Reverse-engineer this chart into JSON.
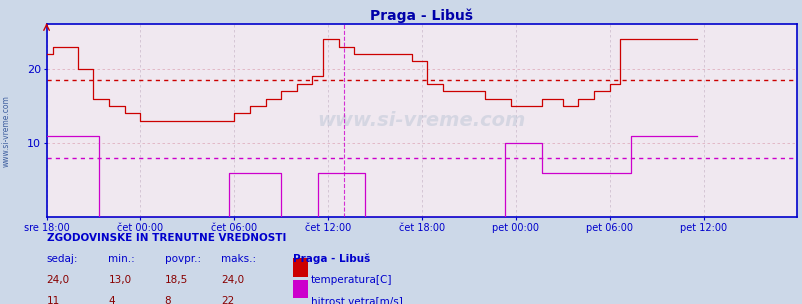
{
  "title": "Praga - Libuš",
  "bg_color": "#ccd8e8",
  "plot_bg_color": "#f0e8f0",
  "title_color": "#0000aa",
  "axis_color": "#0000cc",
  "grid_color_h": "#e0b0c0",
  "grid_color_v": "#d0c0d0",
  "temp_color": "#cc0000",
  "wind_color": "#cc00cc",
  "temp_avg_line": 18.5,
  "wind_avg_line": 8.0,
  "ylim": [
    0,
    26
  ],
  "yticks": [
    10,
    20
  ],
  "x_tick_labels": [
    "sre 18:00",
    "čet 00:00",
    "čet 06:00",
    "čet 12:00",
    "čet 18:00",
    "pet 00:00",
    "pet 06:00",
    "pet 12:00"
  ],
  "x_tick_positions": [
    0,
    72,
    144,
    216,
    288,
    360,
    432,
    504
  ],
  "total_points": 576,
  "temp_data": [
    22,
    22,
    22,
    22,
    22,
    23,
    23,
    23,
    23,
    23,
    23,
    23,
    23,
    23,
    23,
    23,
    23,
    23,
    23,
    23,
    23,
    23,
    23,
    23,
    20,
    20,
    20,
    20,
    20,
    20,
    20,
    20,
    20,
    20,
    20,
    20,
    16,
    16,
    16,
    16,
    16,
    16,
    16,
    16,
    16,
    16,
    16,
    16,
    15,
    15,
    15,
    15,
    15,
    15,
    15,
    15,
    15,
    15,
    15,
    15,
    14,
    14,
    14,
    14,
    14,
    14,
    14,
    14,
    14,
    14,
    14,
    14,
    13,
    13,
    13,
    13,
    13,
    13,
    13,
    13,
    13,
    13,
    13,
    13,
    13,
    13,
    13,
    13,
    13,
    13,
    13,
    13,
    13,
    13,
    13,
    13,
    13,
    13,
    13,
    13,
    13,
    13,
    13,
    13,
    13,
    13,
    13,
    13,
    13,
    13,
    13,
    13,
    13,
    13,
    13,
    13,
    13,
    13,
    13,
    13,
    13,
    13,
    13,
    13,
    13,
    13,
    13,
    13,
    13,
    13,
    13,
    13,
    13,
    13,
    13,
    13,
    13,
    13,
    13,
    13,
    13,
    13,
    13,
    13,
    14,
    14,
    14,
    14,
    14,
    14,
    14,
    14,
    14,
    14,
    14,
    14,
    15,
    15,
    15,
    15,
    15,
    15,
    15,
    15,
    15,
    15,
    15,
    15,
    16,
    16,
    16,
    16,
    16,
    16,
    16,
    16,
    16,
    16,
    16,
    16,
    17,
    17,
    17,
    17,
    17,
    17,
    17,
    17,
    17,
    17,
    17,
    17,
    18,
    18,
    18,
    18,
    18,
    18,
    18,
    18,
    18,
    18,
    18,
    18,
    19,
    19,
    19,
    19,
    19,
    19,
    19,
    19,
    24,
    24,
    24,
    24,
    24,
    24,
    24,
    24,
    24,
    24,
    24,
    24,
    23,
    23,
    23,
    23,
    23,
    23,
    23,
    23,
    23,
    23,
    23,
    23,
    22,
    22,
    22,
    22,
    22,
    22,
    22,
    22,
    22,
    22,
    22,
    22,
    22,
    22,
    22,
    22,
    22,
    22,
    22,
    22,
    22,
    22,
    22,
    22,
    22,
    22,
    22,
    22,
    22,
    22,
    22,
    22,
    22,
    22,
    22,
    22,
    22,
    22,
    22,
    22,
    22,
    22,
    22,
    22,
    21,
    21,
    21,
    21,
    21,
    21,
    21,
    21,
    21,
    21,
    21,
    21,
    18,
    18,
    18,
    18,
    18,
    18,
    18,
    18,
    18,
    18,
    18,
    18,
    17,
    17,
    17,
    17,
    17,
    17,
    17,
    17,
    17,
    17,
    17,
    17,
    17,
    17,
    17,
    17,
    17,
    17,
    17,
    17,
    17,
    17,
    17,
    17,
    17,
    17,
    17,
    17,
    17,
    17,
    17,
    17,
    16,
    16,
    16,
    16,
    16,
    16,
    16,
    16,
    16,
    16,
    16,
    16,
    16,
    16,
    16,
    16,
    16,
    16,
    16,
    16,
    15,
    15,
    15,
    15,
    15,
    15,
    15,
    15,
    15,
    15,
    15,
    15,
    15,
    15,
    15,
    15,
    15,
    15,
    15,
    15,
    15,
    15,
    15,
    15,
    16,
    16,
    16,
    16,
    16,
    16,
    16,
    16,
    16,
    16,
    16,
    16,
    16,
    16,
    16,
    16,
    15,
    15,
    15,
    15,
    15,
    15,
    15,
    15,
    15,
    15,
    15,
    15,
    16,
    16,
    16,
    16,
    16,
    16,
    16,
    16,
    16,
    16,
    16,
    16,
    17,
    17,
    17,
    17,
    17,
    17,
    17,
    17,
    17,
    17,
    17,
    17,
    18,
    18,
    18,
    18,
    18,
    18,
    18,
    18,
    24,
    24,
    24,
    24,
    24,
    24,
    24,
    24,
    24,
    24,
    24,
    24,
    24,
    24,
    24,
    24,
    24,
    24,
    24,
    24,
    24,
    24,
    24,
    24,
    24,
    24,
    24,
    24,
    24,
    24,
    24,
    24,
    24,
    24,
    24,
    24,
    24,
    24,
    24,
    24,
    24,
    24,
    24,
    24,
    24,
    24,
    24,
    24,
    24,
    24,
    24,
    24,
    24,
    24,
    24,
    24,
    24,
    24,
    24,
    24
  ],
  "wind_data": [
    11,
    11,
    11,
    11,
    11,
    11,
    11,
    11,
    11,
    11,
    11,
    11,
    11,
    11,
    11,
    11,
    11,
    11,
    11,
    11,
    11,
    11,
    11,
    11,
    11,
    11,
    11,
    11,
    11,
    11,
    11,
    11,
    11,
    11,
    11,
    11,
    11,
    11,
    11,
    11,
    0,
    0,
    0,
    0,
    0,
    0,
    0,
    0,
    0,
    0,
    0,
    0,
    0,
    0,
    0,
    0,
    0,
    0,
    0,
    0,
    0,
    0,
    0,
    0,
    0,
    0,
    0,
    0,
    0,
    0,
    0,
    0,
    0,
    0,
    0,
    0,
    0,
    0,
    0,
    0,
    0,
    0,
    0,
    0,
    0,
    0,
    0,
    0,
    0,
    0,
    0,
    0,
    0,
    0,
    0,
    0,
    0,
    0,
    0,
    0,
    0,
    0,
    0,
    0,
    0,
    0,
    0,
    0,
    0,
    0,
    0,
    0,
    0,
    0,
    0,
    0,
    0,
    0,
    0,
    0,
    0,
    0,
    0,
    0,
    0,
    0,
    0,
    0,
    0,
    0,
    0,
    0,
    0,
    0,
    0,
    0,
    0,
    0,
    0,
    0,
    6,
    6,
    6,
    6,
    6,
    6,
    6,
    6,
    6,
    6,
    6,
    6,
    6,
    6,
    6,
    6,
    6,
    6,
    6,
    6,
    6,
    6,
    6,
    6,
    6,
    6,
    6,
    6,
    6,
    6,
    6,
    6,
    6,
    6,
    6,
    6,
    6,
    6,
    6,
    6,
    0,
    0,
    0,
    0,
    0,
    0,
    0,
    0,
    0,
    0,
    0,
    0,
    0,
    0,
    0,
    0,
    0,
    0,
    0,
    0,
    0,
    0,
    0,
    0,
    0,
    0,
    0,
    0,
    6,
    6,
    6,
    6,
    6,
    6,
    6,
    6,
    6,
    6,
    6,
    6,
    6,
    6,
    6,
    6,
    6,
    6,
    6,
    6,
    6,
    6,
    6,
    6,
    6,
    6,
    6,
    6,
    6,
    6,
    6,
    6,
    6,
    6,
    6,
    6,
    0,
    0,
    0,
    0,
    0,
    0,
    0,
    0,
    0,
    0,
    0,
    0,
    0,
    0,
    0,
    0,
    0,
    0,
    0,
    0,
    0,
    0,
    0,
    0,
    0,
    0,
    0,
    0,
    0,
    0,
    0,
    0,
    0,
    0,
    0,
    0,
    0,
    0,
    0,
    0,
    0,
    0,
    0,
    0,
    0,
    0,
    0,
    0,
    0,
    0,
    0,
    0,
    0,
    0,
    0,
    0,
    0,
    0,
    0,
    0,
    0,
    0,
    0,
    0,
    0,
    0,
    0,
    0,
    0,
    0,
    0,
    0,
    0,
    0,
    0,
    0,
    0,
    0,
    0,
    0,
    0,
    0,
    0,
    0,
    0,
    0,
    0,
    0,
    0,
    0,
    0,
    0,
    0,
    0,
    0,
    0,
    0,
    0,
    0,
    0,
    0,
    0,
    0,
    0,
    0,
    0,
    0,
    0,
    10,
    10,
    10,
    10,
    10,
    10,
    10,
    10,
    10,
    10,
    10,
    10,
    10,
    10,
    10,
    10,
    10,
    10,
    10,
    10,
    10,
    10,
    10,
    10,
    10,
    10,
    10,
    10,
    6,
    6,
    6,
    6,
    6,
    6,
    6,
    6,
    6,
    6,
    6,
    6,
    6,
    6,
    6,
    6,
    6,
    6,
    6,
    6,
    6,
    6,
    6,
    6,
    6,
    6,
    6,
    6,
    6,
    6,
    6,
    6,
    6,
    6,
    6,
    6,
    6,
    6,
    6,
    6,
    6,
    6,
    6,
    6,
    6,
    6,
    6,
    6,
    6,
    6,
    6,
    6,
    6,
    6,
    6,
    6,
    6,
    6,
    6,
    6,
    6,
    6,
    6,
    6,
    6,
    6,
    6,
    6,
    11,
    11,
    11,
    11,
    11,
    11,
    11,
    11,
    11,
    11,
    11,
    11,
    11,
    11,
    11,
    11,
    11,
    11,
    11,
    11,
    11,
    11,
    11,
    11,
    11,
    11,
    11,
    11,
    11,
    11,
    11,
    11,
    11,
    11,
    11,
    11,
    11,
    11,
    11,
    11,
    11,
    11,
    11,
    11,
    11,
    11,
    11,
    11,
    11,
    11,
    11,
    11
  ],
  "watermark": "www.si-vreme.com",
  "legend_title": "Praga - Libuš",
  "temp_label": "temperatura[C]",
  "wind_label": "hitrost vetra[m/s]",
  "stats_title": "ZGODOVINSKE IN TRENUTNE VREDNOSTI",
  "stats_headers": [
    "sedaj:",
    "min.:",
    "povpr.:",
    "maks.:"
  ],
  "temp_stats": [
    "24,0",
    "13,0",
    "18,5",
    "24,0"
  ],
  "wind_stats": [
    "11",
    "4",
    "8",
    "22"
  ],
  "sidebar_text": "www.si-vreme.com"
}
